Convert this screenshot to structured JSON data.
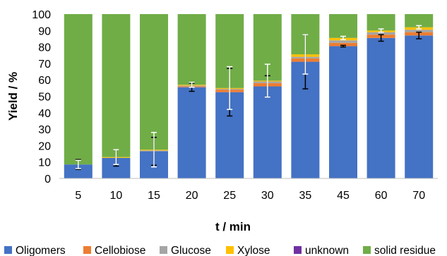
{
  "chart_data": {
    "type": "bar",
    "stacked": true,
    "categories": [
      "5",
      "10",
      "15",
      "20",
      "25",
      "30",
      "35",
      "45",
      "60",
      "70"
    ],
    "series": [
      {
        "name": "Oligomers",
        "color": "#4472C4",
        "values": [
          8.5,
          12.5,
          16.5,
          55.5,
          52.5,
          56,
          71,
          80.5,
          85.5,
          87
        ]
      },
      {
        "name": "Cellobiose",
        "color": "#ED7D31",
        "values": [
          0,
          0,
          0,
          0.5,
          1.5,
          2,
          2,
          2,
          2,
          2
        ]
      },
      {
        "name": "Glucose",
        "color": "#A5A5A5",
        "values": [
          0,
          0,
          0.5,
          0.5,
          0.5,
          1,
          1,
          1.5,
          1.5,
          1.5
        ]
      },
      {
        "name": "Xylose",
        "color": "#FFC000",
        "values": [
          0,
          0.5,
          0.5,
          0.5,
          0.5,
          0.5,
          1.5,
          1.5,
          1,
          1.5
        ]
      },
      {
        "name": "unknown",
        "color": "#7030A0",
        "values": [
          0,
          0,
          0,
          0,
          0,
          0,
          0,
          0,
          0,
          0
        ]
      },
      {
        "name": "solid residue",
        "color": "#70AD47",
        "values": [
          91.5,
          87,
          82.5,
          43,
          45,
          40.5,
          24.5,
          14.5,
          10,
          8
        ]
      }
    ],
    "error_bars": {
      "Oligomers": [
        3,
        5,
        8.5,
        2.5,
        14.5,
        6.5,
        16.5,
        0.5,
        2,
        2
      ],
      "solid residue": [
        2.5,
        4.5,
        10.5,
        1.5,
        13,
        10,
        12,
        1,
        1,
        1
      ]
    },
    "xlabel": "t / min",
    "ylabel": "Yield / %",
    "ylim": [
      0,
      100
    ],
    "yticks": [
      0,
      10,
      20,
      30,
      40,
      50,
      60,
      70,
      80,
      90,
      100
    ],
    "grid": false,
    "legend": "bottom"
  }
}
